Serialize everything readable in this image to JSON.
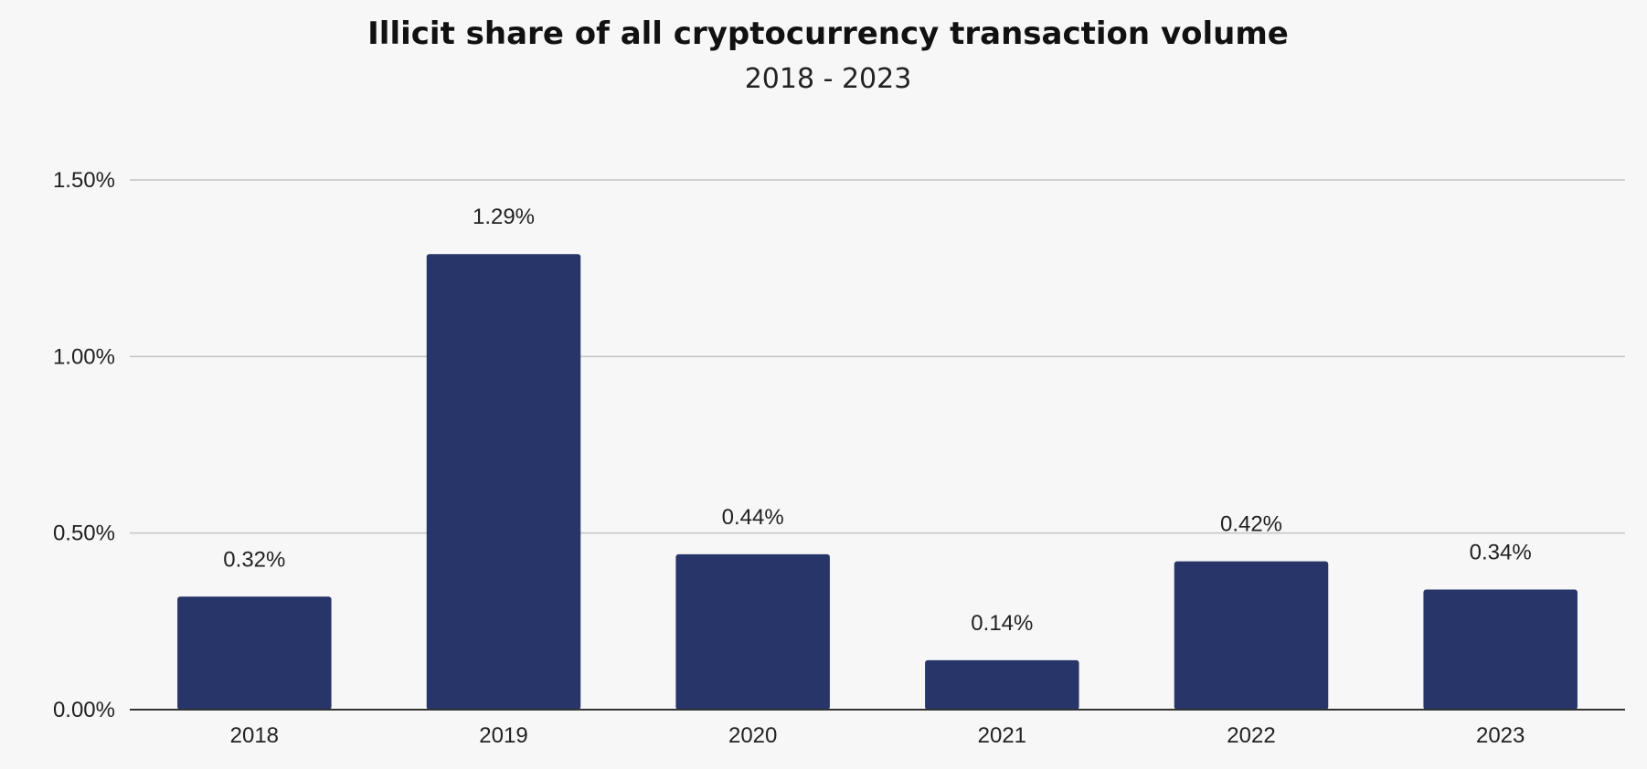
{
  "chart_data": {
    "type": "bar",
    "title": "Illicit share of all cryptocurrency transaction volume",
    "subtitle": "2018 - 2023",
    "xlabel": "",
    "ylabel": "",
    "categories": [
      "2018",
      "2019",
      "2020",
      "2021",
      "2022",
      "2023"
    ],
    "values": [
      0.32,
      1.29,
      0.44,
      0.14,
      0.42,
      0.34
    ],
    "data_labels": [
      "0.32%",
      "1.29%",
      "0.44%",
      "0.14%",
      "0.42%",
      "0.34%"
    ],
    "ylim": [
      0,
      1.5
    ],
    "yticks": [
      0,
      0.5,
      1.0,
      1.5
    ],
    "ytick_labels": [
      "0.00%",
      "0.50%",
      "1.00%",
      "1.50%"
    ],
    "grid": true,
    "legend": "none",
    "bar_color": "#283569"
  }
}
